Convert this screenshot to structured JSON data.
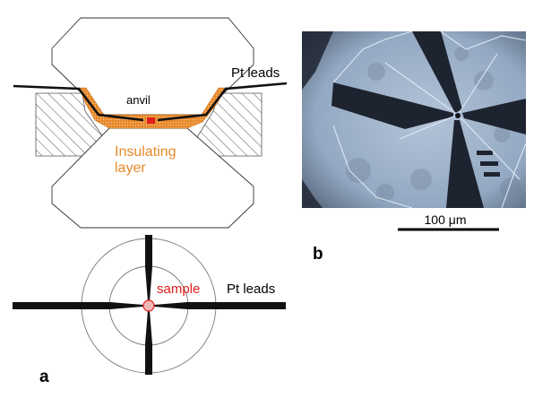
{
  "figure": {
    "panel_a": {
      "letter": "a",
      "labels": {
        "anvil": "anvil",
        "pt_leads_top": "Pt leads",
        "insulating_line1": "Insulating",
        "insulating_line2": "layer",
        "sample": "sample",
        "pt_leads_bottom": "Pt leads"
      }
    },
    "panel_b": {
      "letter": "b",
      "scale_bar_label": "100 μm"
    }
  },
  "colors": {
    "insulating_layer": "#e8892a",
    "sample": "#e31c1c",
    "hatch": "#555555",
    "lead": "#111111",
    "micrograph_bg": "#9fb3cc",
    "micrograph_shadow": "#1e2330"
  }
}
